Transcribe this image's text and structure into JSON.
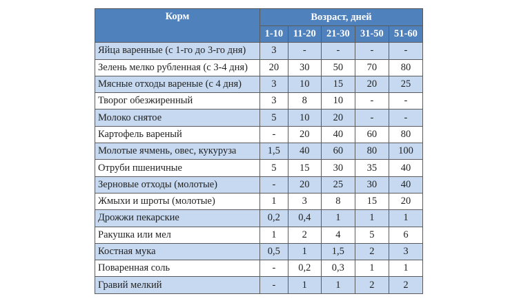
{
  "header": {
    "feed": "Корм",
    "age": "Возраст, дней",
    "ranges": [
      "1-10",
      "11-20",
      "21-30",
      "31-50",
      "51-60"
    ]
  },
  "rows": [
    {
      "name": "Яйца варенные (с 1-го до 3-го дня)",
      "values": [
        "3",
        "-",
        "-",
        "-",
        "-"
      ]
    },
    {
      "name": "Зелень мелко рубленная (с 3-4 дня)",
      "values": [
        "20",
        "30",
        "50",
        "70",
        "80"
      ]
    },
    {
      "name": "Мясные отходы вареные (с 4 дня)",
      "values": [
        "3",
        "10",
        "15",
        "20",
        "25"
      ]
    },
    {
      "name": "Творог обезжиренный",
      "values": [
        "3",
        "8",
        "10",
        "-",
        "-"
      ]
    },
    {
      "name": "Молоко снятое",
      "values": [
        "5",
        "10",
        "20",
        "-",
        "-"
      ]
    },
    {
      "name": "Картофель вареный",
      "values": [
        "-",
        "20",
        "40",
        "60",
        "80"
      ]
    },
    {
      "name": "Молотые ячмень, овес, кукуруза",
      "values": [
        "1,5",
        "40",
        "60",
        "80",
        "100"
      ]
    },
    {
      "name": "Отруби пшеничные",
      "values": [
        "5",
        "15",
        "30",
        "35",
        "40"
      ]
    },
    {
      "name": "Зерновые отходы (молотые)",
      "values": [
        "-",
        "20",
        "25",
        "30",
        "40"
      ]
    },
    {
      "name": "Жмыхи и шроты  (молотые)",
      "values": [
        "1",
        "3",
        "8",
        "15",
        "20"
      ]
    },
    {
      "name": "Дрожжи пекарские",
      "values": [
        "0,2",
        "0,4",
        "1",
        "1",
        "1"
      ]
    },
    {
      "name": "Ракушка или мел",
      "values": [
        "1",
        "2",
        "4",
        "5",
        "6"
      ]
    },
    {
      "name": "Костная мука",
      "values": [
        "0,5",
        "1",
        "1,5",
        "2",
        "3"
      ]
    },
    {
      "name": "Поваренная соль",
      "values": [
        "-",
        "0,2",
        "0,3",
        "1",
        "1"
      ]
    },
    {
      "name": "Гравий мелкий",
      "values": [
        "-",
        "1",
        "1",
        "2",
        "2"
      ]
    }
  ],
  "colors": {
    "header": "#4f81bd",
    "alt_row": "#c6d9f0"
  }
}
